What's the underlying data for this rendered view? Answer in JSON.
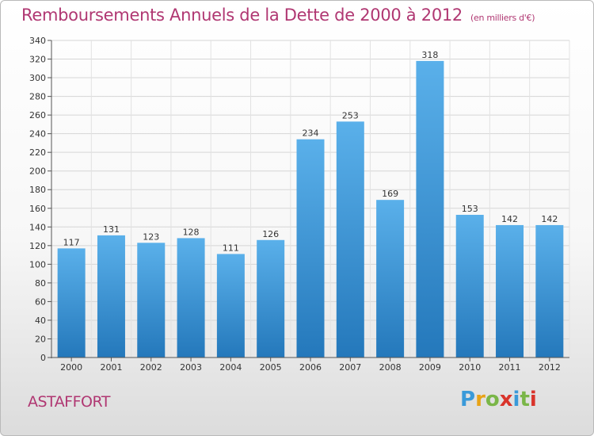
{
  "title": "Remboursements Annuels de la Dette de 2000 à 2012",
  "unit_note": "(en milliers d'€)",
  "city": "ASTAFFORT",
  "logo": {
    "letters": [
      "P",
      "r",
      "o",
      "x",
      "i",
      "t",
      "i"
    ],
    "colors": [
      "#3a9ad9",
      "#e8a317",
      "#7ab648",
      "#d9342b",
      "#3a9ad9",
      "#7ab648",
      "#d9342b"
    ]
  },
  "colors": {
    "bar_top": "#5ab0ea",
    "bar_bottom": "#2478bb",
    "title": "#b03772"
  },
  "chart_data": {
    "type": "bar",
    "categories": [
      "2000",
      "2001",
      "2002",
      "2003",
      "2004",
      "2005",
      "2006",
      "2007",
      "2008",
      "2009",
      "2010",
      "2011",
      "2012"
    ],
    "values": [
      117,
      131,
      123,
      128,
      111,
      126,
      234,
      253,
      169,
      318,
      153,
      142,
      142
    ],
    "data_labels": [
      "117",
      "131",
      "123",
      "128",
      "111",
      "126",
      "234",
      "253",
      "169",
      "318",
      "153",
      "142",
      "142"
    ],
    "yticks": [
      "0",
      "20",
      "40",
      "60",
      "80",
      "100",
      "120",
      "140",
      "160",
      "180",
      "200",
      "220",
      "240",
      "260",
      "280",
      "300",
      "320",
      "340"
    ],
    "ylim": [
      0,
      340
    ],
    "grid": true
  }
}
